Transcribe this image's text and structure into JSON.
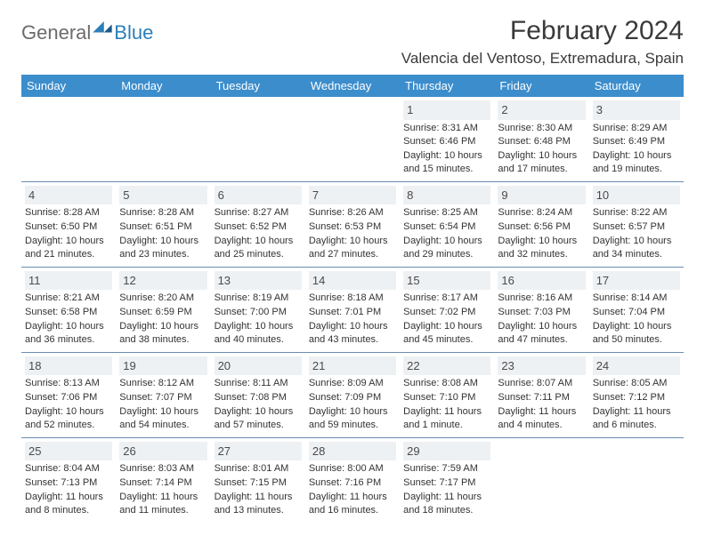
{
  "logo": {
    "text1": "General",
    "text2": "Blue"
  },
  "title": {
    "month": "February 2024",
    "location": "Valencia del Ventoso, Extremadura, Spain"
  },
  "colors": {
    "header_bg": "#3c8dcc",
    "header_text": "#ffffff",
    "daynum_bg": "#eef1f4",
    "border": "#6a8db3",
    "logo_gray": "#6b6b6b",
    "logo_blue": "#2c7fb8"
  },
  "day_headers": [
    "Sunday",
    "Monday",
    "Tuesday",
    "Wednesday",
    "Thursday",
    "Friday",
    "Saturday"
  ],
  "weeks": [
    [
      null,
      null,
      null,
      null,
      {
        "num": "1",
        "sunrise": "Sunrise: 8:31 AM",
        "sunset": "Sunset: 6:46 PM",
        "daylight": "Daylight: 10 hours and 15 minutes."
      },
      {
        "num": "2",
        "sunrise": "Sunrise: 8:30 AM",
        "sunset": "Sunset: 6:48 PM",
        "daylight": "Daylight: 10 hours and 17 minutes."
      },
      {
        "num": "3",
        "sunrise": "Sunrise: 8:29 AM",
        "sunset": "Sunset: 6:49 PM",
        "daylight": "Daylight: 10 hours and 19 minutes."
      }
    ],
    [
      {
        "num": "4",
        "sunrise": "Sunrise: 8:28 AM",
        "sunset": "Sunset: 6:50 PM",
        "daylight": "Daylight: 10 hours and 21 minutes."
      },
      {
        "num": "5",
        "sunrise": "Sunrise: 8:28 AM",
        "sunset": "Sunset: 6:51 PM",
        "daylight": "Daylight: 10 hours and 23 minutes."
      },
      {
        "num": "6",
        "sunrise": "Sunrise: 8:27 AM",
        "sunset": "Sunset: 6:52 PM",
        "daylight": "Daylight: 10 hours and 25 minutes."
      },
      {
        "num": "7",
        "sunrise": "Sunrise: 8:26 AM",
        "sunset": "Sunset: 6:53 PM",
        "daylight": "Daylight: 10 hours and 27 minutes."
      },
      {
        "num": "8",
        "sunrise": "Sunrise: 8:25 AM",
        "sunset": "Sunset: 6:54 PM",
        "daylight": "Daylight: 10 hours and 29 minutes."
      },
      {
        "num": "9",
        "sunrise": "Sunrise: 8:24 AM",
        "sunset": "Sunset: 6:56 PM",
        "daylight": "Daylight: 10 hours and 32 minutes."
      },
      {
        "num": "10",
        "sunrise": "Sunrise: 8:22 AM",
        "sunset": "Sunset: 6:57 PM",
        "daylight": "Daylight: 10 hours and 34 minutes."
      }
    ],
    [
      {
        "num": "11",
        "sunrise": "Sunrise: 8:21 AM",
        "sunset": "Sunset: 6:58 PM",
        "daylight": "Daylight: 10 hours and 36 minutes."
      },
      {
        "num": "12",
        "sunrise": "Sunrise: 8:20 AM",
        "sunset": "Sunset: 6:59 PM",
        "daylight": "Daylight: 10 hours and 38 minutes."
      },
      {
        "num": "13",
        "sunrise": "Sunrise: 8:19 AM",
        "sunset": "Sunset: 7:00 PM",
        "daylight": "Daylight: 10 hours and 40 minutes."
      },
      {
        "num": "14",
        "sunrise": "Sunrise: 8:18 AM",
        "sunset": "Sunset: 7:01 PM",
        "daylight": "Daylight: 10 hours and 43 minutes."
      },
      {
        "num": "15",
        "sunrise": "Sunrise: 8:17 AM",
        "sunset": "Sunset: 7:02 PM",
        "daylight": "Daylight: 10 hours and 45 minutes."
      },
      {
        "num": "16",
        "sunrise": "Sunrise: 8:16 AM",
        "sunset": "Sunset: 7:03 PM",
        "daylight": "Daylight: 10 hours and 47 minutes."
      },
      {
        "num": "17",
        "sunrise": "Sunrise: 8:14 AM",
        "sunset": "Sunset: 7:04 PM",
        "daylight": "Daylight: 10 hours and 50 minutes."
      }
    ],
    [
      {
        "num": "18",
        "sunrise": "Sunrise: 8:13 AM",
        "sunset": "Sunset: 7:06 PM",
        "daylight": "Daylight: 10 hours and 52 minutes."
      },
      {
        "num": "19",
        "sunrise": "Sunrise: 8:12 AM",
        "sunset": "Sunset: 7:07 PM",
        "daylight": "Daylight: 10 hours and 54 minutes."
      },
      {
        "num": "20",
        "sunrise": "Sunrise: 8:11 AM",
        "sunset": "Sunset: 7:08 PM",
        "daylight": "Daylight: 10 hours and 57 minutes."
      },
      {
        "num": "21",
        "sunrise": "Sunrise: 8:09 AM",
        "sunset": "Sunset: 7:09 PM",
        "daylight": "Daylight: 10 hours and 59 minutes."
      },
      {
        "num": "22",
        "sunrise": "Sunrise: 8:08 AM",
        "sunset": "Sunset: 7:10 PM",
        "daylight": "Daylight: 11 hours and 1 minute."
      },
      {
        "num": "23",
        "sunrise": "Sunrise: 8:07 AM",
        "sunset": "Sunset: 7:11 PM",
        "daylight": "Daylight: 11 hours and 4 minutes."
      },
      {
        "num": "24",
        "sunrise": "Sunrise: 8:05 AM",
        "sunset": "Sunset: 7:12 PM",
        "daylight": "Daylight: 11 hours and 6 minutes."
      }
    ],
    [
      {
        "num": "25",
        "sunrise": "Sunrise: 8:04 AM",
        "sunset": "Sunset: 7:13 PM",
        "daylight": "Daylight: 11 hours and 8 minutes."
      },
      {
        "num": "26",
        "sunrise": "Sunrise: 8:03 AM",
        "sunset": "Sunset: 7:14 PM",
        "daylight": "Daylight: 11 hours and 11 minutes."
      },
      {
        "num": "27",
        "sunrise": "Sunrise: 8:01 AM",
        "sunset": "Sunset: 7:15 PM",
        "daylight": "Daylight: 11 hours and 13 minutes."
      },
      {
        "num": "28",
        "sunrise": "Sunrise: 8:00 AM",
        "sunset": "Sunset: 7:16 PM",
        "daylight": "Daylight: 11 hours and 16 minutes."
      },
      {
        "num": "29",
        "sunrise": "Sunrise: 7:59 AM",
        "sunset": "Sunset: 7:17 PM",
        "daylight": "Daylight: 11 hours and 18 minutes."
      },
      null,
      null
    ]
  ]
}
